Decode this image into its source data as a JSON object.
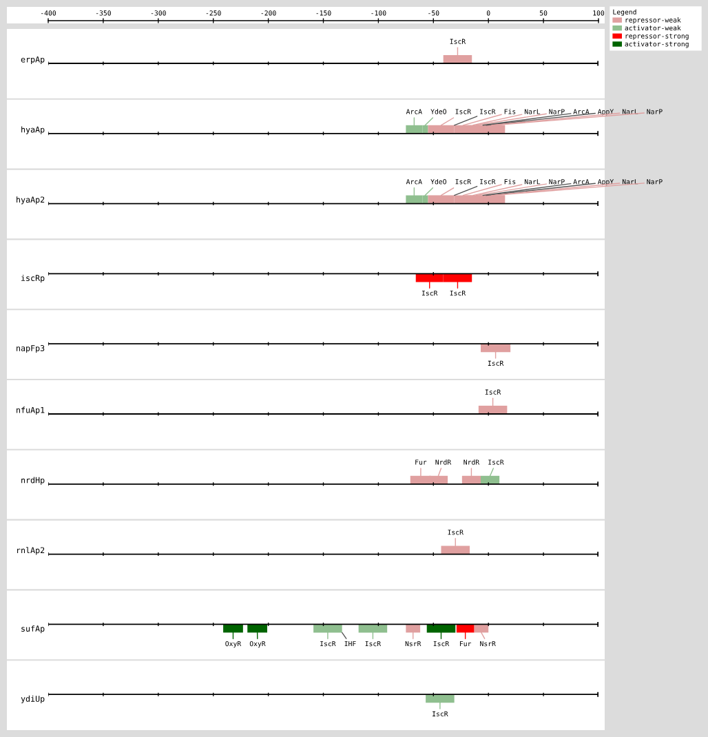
{
  "chart_data": {
    "type": "bar",
    "orientation": "horizontal",
    "categories": [
      "erpAp",
      null,
      "hyaAp",
      null,
      "hyaAp2",
      null,
      null,
      "iscRp",
      null,
      "napFp3",
      "nfuAp1",
      null,
      "nrdHp",
      null,
      "rnlAp2",
      null,
      null,
      "sufAp",
      null,
      "ydiUp"
    ],
    "xlim": [
      -400,
      100
    ],
    "xticks": [
      -400,
      -350,
      -300,
      -250,
      -200,
      -150,
      -100,
      -50,
      0,
      50,
      100
    ],
    "grid": "y",
    "legend": "top right",
    "legend_title": "Legend",
    "series": [
      {
        "name": "repressor-weak",
        "color": "#e0a0a0",
        "base": [
          -41,
          null,
          -55,
          null,
          -55,
          null,
          null,
          null,
          null,
          -7,
          -9,
          null,
          -71,
          null,
          -43,
          null,
          null,
          -75,
          null,
          null
        ],
        "values": [
          26,
          null,
          24,
          null,
          24,
          null,
          null,
          null,
          null,
          27,
          26,
          null,
          19,
          null,
          26,
          null,
          null,
          13,
          null,
          null
        ],
        "value_labels": [
          "IscR",
          null,
          "IscR",
          null,
          "IscR",
          null,
          null,
          null,
          null,
          "IscR",
          "IscR",
          null,
          "Fur",
          null,
          "IscR",
          null,
          null,
          "NsrR",
          null,
          null
        ]
      },
      {
        "color": "#e0a0a0",
        "base": [
          null,
          null,
          -31,
          null,
          -31,
          null,
          null,
          null,
          null,
          null,
          null,
          null,
          -54,
          null,
          null,
          null,
          null,
          -13,
          null,
          null
        ],
        "values": [
          null,
          null,
          16,
          null,
          16,
          null,
          null,
          null,
          null,
          null,
          null,
          null,
          17,
          null,
          null,
          null,
          null,
          13,
          null,
          null
        ],
        "value_labels": [
          null,
          null,
          "Fis",
          null,
          "Fis",
          null,
          null,
          null,
          null,
          null,
          null,
          null,
          "NrdR",
          null,
          null,
          null,
          null,
          "NsrR",
          null,
          null
        ]
      },
      {
        "color": "#e0a0a0",
        "base": [
          null,
          null,
          -22,
          null,
          -22,
          null,
          null,
          null,
          null,
          null,
          null,
          null,
          -24,
          null,
          null,
          null,
          null,
          null,
          null,
          null
        ],
        "values": [
          null,
          null,
          16,
          null,
          16,
          null,
          null,
          null,
          null,
          null,
          null,
          null,
          17,
          null,
          null,
          null,
          null,
          null,
          null,
          null
        ],
        "value_labels": [
          null,
          null,
          "NarL",
          null,
          "NarL",
          null,
          null,
          null,
          null,
          null,
          null,
          null,
          "NrdR",
          null,
          null,
          null,
          null,
          null,
          null,
          null
        ]
      },
      {
        "color": "#e0a0a0",
        "base": [
          null,
          null,
          -20,
          null,
          -20,
          null,
          null,
          null,
          null,
          null,
          null,
          null,
          null,
          null,
          null,
          null,
          null,
          null,
          null,
          null
        ],
        "values": [
          null,
          null,
          18,
          null,
          18,
          null,
          null,
          null,
          null,
          null,
          null,
          null,
          null,
          null,
          null,
          null,
          null,
          null,
          null,
          null
        ],
        "value_labels": [
          null,
          null,
          "NarP",
          null,
          "NarP",
          null,
          null,
          null,
          null,
          null,
          null,
          null,
          null,
          null,
          null,
          null,
          null,
          null,
          null,
          null
        ]
      },
      {
        "color": "#e0a0a0",
        "base": [
          null,
          null,
          -9,
          null,
          -9,
          null,
          null,
          null,
          null,
          null,
          null,
          null,
          null,
          null,
          null,
          null,
          null,
          null,
          null,
          null
        ],
        "values": [
          null,
          null,
          24,
          null,
          24,
          null,
          null,
          null,
          null,
          null,
          null,
          null,
          null,
          null,
          null,
          null,
          null,
          null,
          null,
          null
        ],
        "value_labels": [
          null,
          null,
          "NarL",
          null,
          "NarL",
          null,
          null,
          null,
          null,
          null,
          null,
          null,
          null,
          null,
          null,
          null,
          null,
          null,
          null,
          null
        ]
      },
      {
        "color": "#e0a0a0",
        "base": [
          null,
          null,
          -5,
          null,
          -5,
          null,
          null,
          null,
          null,
          null,
          null,
          null,
          null,
          null,
          null,
          null,
          null,
          null,
          null,
          null
        ],
        "values": [
          null,
          null,
          20,
          null,
          20,
          null,
          null,
          null,
          null,
          null,
          null,
          null,
          null,
          null,
          null,
          null,
          null,
          null,
          null,
          null
        ],
        "value_labels": [
          null,
          null,
          "NarP",
          null,
          "NarP",
          null,
          null,
          null,
          null,
          null,
          null,
          null,
          null,
          null,
          null,
          null,
          null,
          null,
          null,
          null
        ]
      },
      {
        "name": "activator-weak",
        "color": "#8fbf8f",
        "base": [
          null,
          null,
          -75,
          null,
          -75,
          null,
          null,
          null,
          null,
          null,
          null,
          null,
          -7,
          null,
          null,
          null,
          null,
          -159,
          null,
          -57
        ],
        "values": [
          null,
          null,
          15,
          null,
          15,
          null,
          null,
          null,
          null,
          null,
          null,
          null,
          17,
          null,
          null,
          null,
          null,
          26,
          null,
          26
        ],
        "value_labels": [
          null,
          null,
          "ArcA",
          null,
          "ArcA",
          null,
          null,
          null,
          null,
          null,
          null,
          null,
          "IscR",
          null,
          null,
          null,
          null,
          "IscR",
          null,
          "IscR"
        ]
      },
      {
        "color": "#8fbf8f",
        "base": [
          null,
          null,
          -60,
          null,
          -60,
          null,
          null,
          null,
          null,
          null,
          null,
          null,
          null,
          null,
          null,
          null,
          null,
          -118,
          null,
          null
        ],
        "values": [
          null,
          null,
          5,
          null,
          5,
          null,
          null,
          null,
          null,
          null,
          null,
          null,
          null,
          null,
          null,
          null,
          null,
          26,
          null,
          null
        ],
        "value_labels": [
          null,
          null,
          "YdeO",
          null,
          "YdeO",
          null,
          null,
          null,
          null,
          null,
          null,
          null,
          null,
          null,
          null,
          null,
          null,
          "IscR",
          null,
          null
        ]
      },
      {
        "name": "repressor-strong",
        "color": "#ff0000",
        "base": [
          null,
          null,
          null,
          null,
          null,
          null,
          null,
          -66,
          null,
          null,
          null,
          null,
          null,
          null,
          null,
          null,
          null,
          -29,
          null,
          null
        ],
        "values": [
          null,
          null,
          null,
          null,
          null,
          null,
          null,
          25,
          null,
          null,
          null,
          null,
          null,
          null,
          null,
          null,
          null,
          16,
          null,
          null
        ],
        "value_labels": [
          null,
          null,
          null,
          null,
          null,
          null,
          null,
          "IscR",
          null,
          null,
          null,
          null,
          null,
          null,
          null,
          null,
          null,
          "Fur",
          null,
          null
        ]
      },
      {
        "color": "#ff0000",
        "base": [
          null,
          null,
          null,
          null,
          null,
          null,
          null,
          -41,
          null,
          null,
          null,
          null,
          null,
          null,
          null,
          null,
          null,
          null,
          null,
          null
        ],
        "values": [
          null,
          null,
          null,
          null,
          null,
          null,
          null,
          26,
          null,
          null,
          null,
          null,
          null,
          null,
          null,
          null,
          null,
          null,
          null,
          null
        ],
        "value_labels": [
          null,
          null,
          null,
          null,
          null,
          null,
          null,
          "IscR",
          null,
          null,
          null,
          null,
          null,
          null,
          null,
          null,
          null,
          null,
          null,
          null
        ]
      },
      {
        "name": "activator-strong",
        "color": "#006400",
        "base": [
          null,
          null,
          null,
          null,
          null,
          null,
          null,
          null,
          null,
          null,
          null,
          null,
          null,
          null,
          null,
          null,
          null,
          -241,
          null,
          null
        ],
        "values": [
          null,
          null,
          null,
          null,
          null,
          null,
          null,
          null,
          null,
          null,
          null,
          null,
          null,
          null,
          null,
          null,
          null,
          18,
          null,
          null
        ],
        "value_labels": [
          null,
          null,
          null,
          null,
          null,
          null,
          null,
          null,
          null,
          null,
          null,
          null,
          null,
          null,
          null,
          null,
          null,
          "OxyR",
          null,
          null
        ]
      },
      {
        "color": "#006400",
        "base": [
          null,
          null,
          null,
          null,
          null,
          null,
          null,
          null,
          null,
          null,
          null,
          null,
          null,
          null,
          null,
          null,
          null,
          -219,
          null,
          null
        ],
        "values": [
          null,
          null,
          null,
          null,
          null,
          null,
          null,
          null,
          null,
          null,
          null,
          null,
          null,
          null,
          null,
          null,
          null,
          18,
          null,
          null
        ],
        "value_labels": [
          null,
          null,
          null,
          null,
          null,
          null,
          null,
          null,
          null,
          null,
          null,
          null,
          null,
          null,
          null,
          null,
          null,
          "OxyR",
          null,
          null
        ]
      },
      {
        "color": "#006400",
        "base": [
          null,
          null,
          null,
          null,
          null,
          null,
          null,
          null,
          null,
          null,
          null,
          null,
          null,
          null,
          null,
          null,
          null,
          -56,
          null,
          null
        ],
        "values": [
          null,
          null,
          null,
          null,
          null,
          null,
          null,
          null,
          null,
          null,
          null,
          null,
          null,
          null,
          null,
          null,
          null,
          26,
          null,
          null
        ],
        "value_labels": [
          null,
          null,
          null,
          null,
          null,
          null,
          null,
          null,
          null,
          null,
          null,
          null,
          null,
          null,
          null,
          null,
          null,
          "IscR",
          null,
          null
        ]
      }
    ],
    "annotations": [
      {
        "text": "IscR",
        "x": -31,
        "y": "hyaAp"
      },
      {
        "text": "ArcA",
        "x": -5,
        "y": "hyaAp"
      },
      {
        "text": "AppY",
        "x": -2,
        "y": "hyaAp"
      },
      {
        "text": "IscR",
        "x": -31,
        "y": "hyaAp2"
      },
      {
        "text": "ArcA",
        "x": -5,
        "y": "hyaAp2"
      },
      {
        "text": "AppY",
        "x": -2,
        "y": "hyaAp2"
      },
      {
        "text": "IHF",
        "x": -133,
        "y": "sufAp"
      }
    ]
  }
}
